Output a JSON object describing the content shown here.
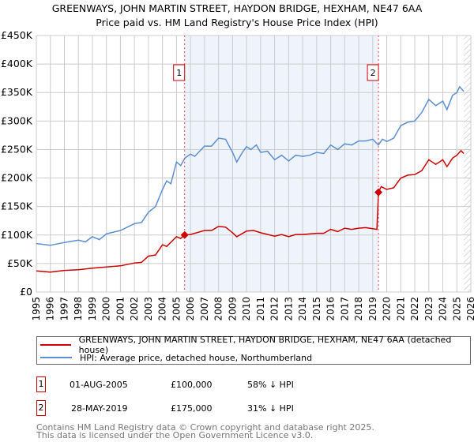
{
  "header": {
    "title": "GREENWAYS, JOHN MARTIN STREET, HAYDON BRIDGE, HEXHAM, NE47 6AA",
    "subtitle": "Price paid vs. HM Land Registry's House Price Index (HPI)"
  },
  "chart_data": {
    "type": "line",
    "title": "Price paid vs. HM Land Registry's House Price Index (HPI)",
    "xlim": [
      1995,
      2026
    ],
    "ylim": [
      0,
      450000
    ],
    "y_ticks": [
      0,
      50000,
      100000,
      150000,
      200000,
      250000,
      300000,
      350000,
      400000,
      450000
    ],
    "y_tick_labels": [
      "£0",
      "£50K",
      "£100K",
      "£150K",
      "£200K",
      "£250K",
      "£300K",
      "£350K",
      "£400K",
      "£450K"
    ],
    "x_ticks": [
      1995,
      1996,
      1997,
      1998,
      1999,
      2000,
      2001,
      2002,
      2003,
      2004,
      2005,
      2006,
      2007,
      2008,
      2009,
      2010,
      2011,
      2012,
      2013,
      2014,
      2015,
      2016,
      2017,
      2018,
      2019,
      2020,
      2021,
      2022,
      2023,
      2024,
      2025,
      2026
    ],
    "grid": true,
    "colors": {
      "property": "#cc0000",
      "hpi": "#5b8fd0",
      "shade": "#eef3fc"
    },
    "series": [
      {
        "name": "GREENWAYS, JOHN MARTIN STREET, HAYDON BRIDGE, HEXHAM, NE47 6AA (detached house)",
        "key": "property",
        "x": [
          1995,
          1996,
          1997,
          1998,
          1999,
          2000,
          2001,
          2002,
          2002.5,
          2003,
          2003.5,
          2004,
          2004.3,
          2005,
          2005.3,
          2005.58,
          2006,
          2007,
          2007.5,
          2008,
          2008.5,
          2009,
          2009.3,
          2010,
          2010.5,
          2011,
          2012,
          2012.5,
          2013,
          2013.5,
          2014,
          2015,
          2015.5,
          2016,
          2016.5,
          2017,
          2017.5,
          2018,
          2018.5,
          2019.3,
          2019.41,
          2019.6,
          2020,
          2020.5,
          2021,
          2021.5,
          2022,
          2022.5,
          2023,
          2023.5,
          2024,
          2024.3,
          2024.7,
          2025,
          2025.3,
          2025.5
        ],
        "y": [
          37000,
          35000,
          38000,
          39000,
          42000,
          44000,
          46000,
          51000,
          52000,
          63000,
          65000,
          83000,
          80000,
          97000,
          94000,
          100000,
          101000,
          108000,
          108000,
          115000,
          114000,
          104000,
          97000,
          107000,
          108000,
          104000,
          98000,
          101000,
          97000,
          101000,
          101000,
          103000,
          103000,
          110000,
          106000,
          112000,
          110000,
          112000,
          113000,
          110000,
          175000,
          185000,
          180000,
          183000,
          200000,
          205000,
          206000,
          213000,
          232000,
          224000,
          232000,
          220000,
          235000,
          240000,
          248000,
          243000
        ]
      },
      {
        "name": "HPI: Average price, detached house, Northumberland",
        "key": "hpi",
        "x": [
          1995,
          1996,
          1997,
          1998,
          1998.5,
          1999,
          1999.5,
          2000,
          2001,
          2002,
          2002.5,
          2003,
          2003.5,
          2004,
          2004.3,
          2004.6,
          2005,
          2005.3,
          2005.6,
          2006,
          2006.3,
          2007,
          2007.5,
          2008,
          2008.5,
          2009,
          2009.3,
          2009.7,
          2010,
          2010.3,
          2010.7,
          2011,
          2011.5,
          2012,
          2012.5,
          2013,
          2013.5,
          2014,
          2014.5,
          2015,
          2015.5,
          2016,
          2016.5,
          2017,
          2017.5,
          2018,
          2018.5,
          2019,
          2019.4,
          2019.7,
          2020,
          2020.5,
          2021,
          2021.5,
          2022,
          2022.5,
          2023,
          2023.5,
          2024,
          2024.3,
          2024.7,
          2025,
          2025.2,
          2025.5
        ],
        "y": [
          85000,
          82000,
          87000,
          91000,
          88000,
          97000,
          92000,
          102000,
          108000,
          120000,
          122000,
          140000,
          150000,
          180000,
          195000,
          190000,
          228000,
          222000,
          235000,
          242000,
          238000,
          256000,
          256000,
          270000,
          268000,
          245000,
          228000,
          245000,
          255000,
          250000,
          258000,
          245000,
          247000,
          232000,
          240000,
          230000,
          240000,
          238000,
          240000,
          245000,
          243000,
          258000,
          250000,
          260000,
          258000,
          265000,
          265000,
          268000,
          258000,
          268000,
          264000,
          270000,
          292000,
          298000,
          300000,
          315000,
          338000,
          327000,
          335000,
          320000,
          345000,
          350000,
          360000,
          352000
        ]
      }
    ],
    "annotations": [
      {
        "label": "1",
        "x": 2005.58,
        "y": 100000
      },
      {
        "label": "2",
        "x": 2019.41,
        "y": 175000
      }
    ],
    "legend_position": "bottom"
  },
  "legend": {
    "property": "GREENWAYS, JOHN MARTIN STREET, HAYDON BRIDGE, HEXHAM, NE47 6AA (detached house)",
    "hpi": "HPI: Average price, detached house, Northumberland"
  },
  "sales": [
    {
      "num": "1",
      "date": "01-AUG-2005",
      "price": "£100,000",
      "delta": "58% ↓ HPI"
    },
    {
      "num": "2",
      "date": "28-MAY-2019",
      "price": "£175,000",
      "delta": "31% ↓ HPI"
    }
  ],
  "footer": {
    "line1": "Contains HM Land Registry data © Crown copyright and database right 2025.",
    "line2": "This data is licensed under the Open Government Licence v3.0."
  }
}
